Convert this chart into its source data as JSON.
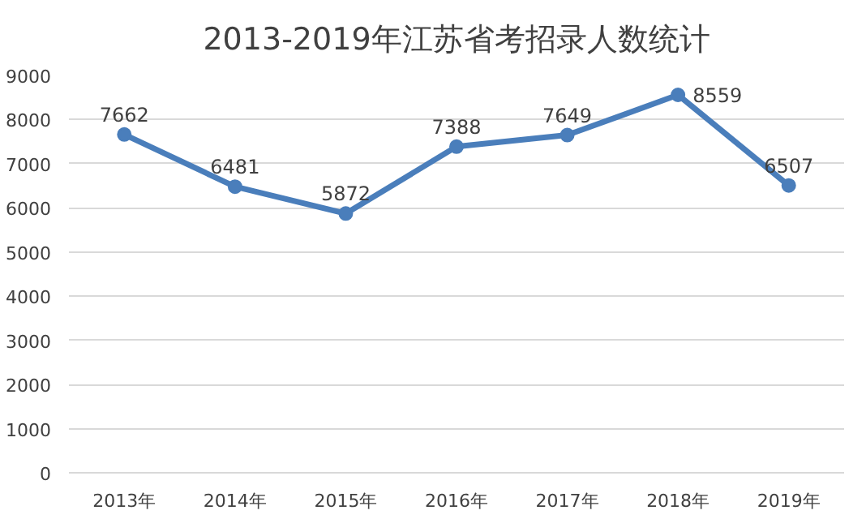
{
  "chart_data": {
    "type": "line",
    "title": "2013-2019年江苏省考招录人数统计",
    "categories": [
      "2013年",
      "2014年",
      "2015年",
      "2016年",
      "2017年",
      "2018年",
      "2019年"
    ],
    "series": [
      {
        "color": "#4a7ebb",
        "values": [
          7662,
          6481,
          5872,
          7388,
          7649,
          8559,
          6507
        ]
      }
    ],
    "ylim": [
      0,
      9000
    ],
    "yticks": [
      0,
      1000,
      2000,
      3000,
      4000,
      5000,
      6000,
      7000,
      8000,
      9000
    ],
    "grid": "y",
    "marker": "circle",
    "line_style": "solid",
    "data_labels": true
  }
}
